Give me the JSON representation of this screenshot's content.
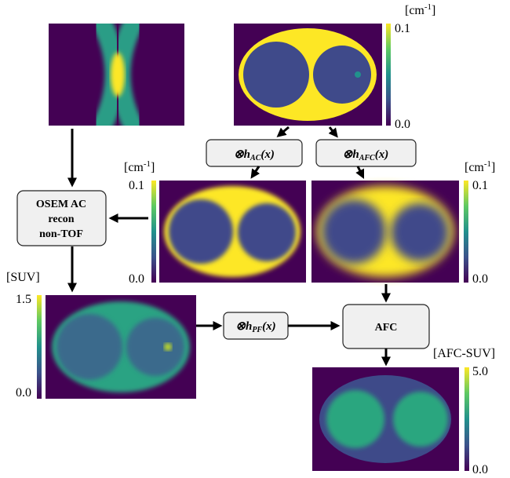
{
  "colorbars": [
    {
      "unit": {
        "pre": "[cm",
        "sup": "-1",
        "post": "]"
      },
      "max": "0.1",
      "min": "0.0"
    },
    {
      "unit": {
        "pre": "[cm",
        "sup": "-1",
        "post": "]"
      },
      "max": "0.1",
      "min": "0.0"
    },
    {
      "unit": {
        "pre": "[cm",
        "sup": "-1",
        "post": "]"
      },
      "max": "0.1",
      "min": "0.0"
    },
    {
      "unit": "[SUV]",
      "max": "1.5",
      "min": "0.0"
    },
    {
      "unit": "[AFC-SUV]",
      "max": "5.0",
      "min": "0.0"
    }
  ],
  "operators": [
    {
      "symbol": "⊗h",
      "sub": "AC",
      "arg": "(x)"
    },
    {
      "symbol": "⊗h",
      "sub": "AFC",
      "arg": "(x)"
    },
    {
      "symbol": "⊗h",
      "sub": "PF",
      "arg": "(x)"
    }
  ],
  "boxes": {
    "osem": [
      "OSEM AC",
      "recon",
      "non-TOF"
    ],
    "afc": "AFC"
  }
}
